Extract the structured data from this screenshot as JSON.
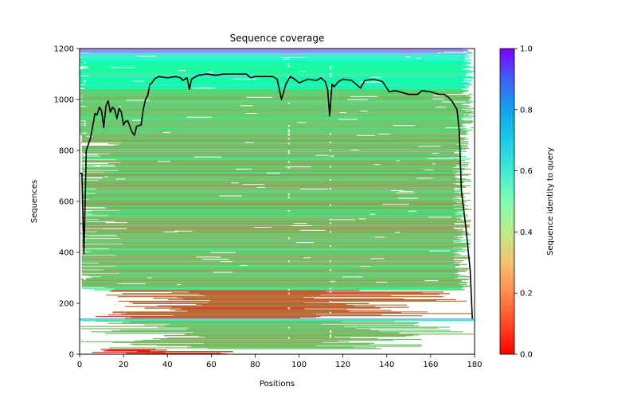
{
  "chart_data": {
    "type": "heatmap",
    "title": "Sequence coverage",
    "xlabel": "Positions",
    "ylabel": "Sequences",
    "xlim": [
      0,
      180
    ],
    "ylim": [
      0,
      1200
    ],
    "xticks": [
      "0",
      "20",
      "40",
      "60",
      "80",
      "100",
      "120",
      "140",
      "160",
      "180"
    ],
    "yticks": [
      "0",
      "200",
      "400",
      "600",
      "800",
      "1000",
      "1200"
    ],
    "grid": false,
    "colorbar": {
      "label": "Sequence identity to query",
      "range": [
        0.0,
        1.0
      ],
      "ticks": [
        "0.0",
        "0.2",
        "0.4",
        "0.6",
        "0.8",
        "1.0"
      ],
      "colormap": "rainbow_r",
      "stops": [
        "#ff0000",
        "#ff7f40",
        "#f5c070",
        "#a9f08f",
        "#2fd5e0",
        "#2080f0",
        "#8000ff"
      ],
      "placement": "right"
    },
    "identity_bands": [
      {
        "from": 0,
        "to": 20,
        "identity": 0.05
      },
      {
        "from": 20,
        "to": 130,
        "identity": 0.27
      },
      {
        "from": 130,
        "to": 136,
        "identity": 0.55
      },
      {
        "from": 136,
        "to": 140,
        "identity": 0.75
      },
      {
        "from": 140,
        "to": 250,
        "identity": 0.13
      },
      {
        "from": 250,
        "to": 860,
        "identity": 0.26
      },
      {
        "from": 860,
        "to": 1040,
        "identity": 0.3
      },
      {
        "from": 1040,
        "to": 1150,
        "identity": 0.45
      },
      {
        "from": 1150,
        "to": 1185,
        "identity": 0.6
      },
      {
        "from": 1185,
        "to": 1200,
        "identity": 0.8
      }
    ],
    "series": [
      {
        "name": "coverage",
        "color": "#000000",
        "x": [
          0,
          1,
          2,
          3,
          5,
          7,
          8,
          9,
          10,
          11,
          12,
          13,
          14,
          15,
          16,
          17,
          18,
          19,
          20,
          21,
          22,
          24,
          25,
          26,
          28,
          29,
          30,
          31,
          32,
          33,
          34,
          36,
          40,
          44,
          46,
          47,
          49,
          50,
          51,
          54,
          58,
          62,
          66,
          70,
          74,
          76,
          78,
          80,
          84,
          88,
          90,
          91,
          92,
          93,
          94,
          96,
          98,
          100,
          104,
          108,
          110,
          112,
          113,
          114,
          115,
          116,
          118,
          120,
          124,
          126,
          128,
          130,
          134,
          138,
          140,
          141,
          144,
          148,
          150,
          154,
          156,
          160,
          164,
          166,
          168,
          170,
          172,
          173,
          174,
          176,
          178,
          179
        ],
        "y": [
          710,
          710,
          395,
          800,
          850,
          945,
          940,
          970,
          955,
          890,
          975,
          995,
          950,
          970,
          960,
          925,
          965,
          950,
          900,
          915,
          915,
          870,
          860,
          895,
          900,
          960,
          1000,
          1015,
          1060,
          1065,
          1080,
          1090,
          1085,
          1090,
          1085,
          1075,
          1085,
          1040,
          1080,
          1095,
          1100,
          1095,
          1100,
          1100,
          1100,
          1100,
          1085,
          1090,
          1090,
          1090,
          1080,
          1040,
          1000,
          1030,
          1060,
          1090,
          1080,
          1065,
          1080,
          1075,
          1085,
          1070,
          1040,
          935,
          1060,
          1050,
          1070,
          1080,
          1075,
          1060,
          1045,
          1075,
          1080,
          1070,
          1045,
          1030,
          1035,
          1025,
          1020,
          1020,
          1035,
          1030,
          1020,
          1020,
          1010,
          990,
          960,
          880,
          640,
          500,
          330,
          140
        ]
      }
    ]
  }
}
